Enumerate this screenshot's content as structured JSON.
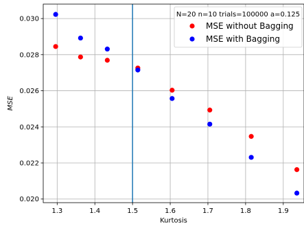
{
  "chart_data": {
    "type": "scatter",
    "xlabel": "Kurtosis",
    "ylabel": "MSE",
    "xlim": [
      1.263,
      1.955
    ],
    "ylim": [
      0.0198,
      0.0308
    ],
    "xticks": [
      1.3,
      1.4,
      1.5,
      1.6,
      1.7,
      1.8,
      1.9
    ],
    "xtick_labels": [
      "1.3",
      "1.4",
      "1.5",
      "1.6",
      "1.7",
      "1.8",
      "1.9"
    ],
    "yticks": [
      0.02,
      0.022,
      0.024,
      0.026,
      0.028,
      0.03
    ],
    "ytick_labels": [
      "0.020",
      "0.022",
      "0.024",
      "0.026",
      "0.028",
      "0.030"
    ],
    "grid": true,
    "vline": {
      "x": 1.5,
      "color": "#1f77b4"
    },
    "legend": {
      "placement": "top-right",
      "title": "N=20 n=10 trials=100000 a=0.125"
    },
    "series": [
      {
        "name": "MSE without Bagging",
        "color": "#ff0000",
        "x": [
          1.296,
          1.362,
          1.433,
          1.514,
          1.605,
          1.705,
          1.815,
          1.936
        ],
        "y": [
          0.02845,
          0.02787,
          0.02769,
          0.02726,
          0.02603,
          0.02493,
          0.02347,
          0.02163
        ]
      },
      {
        "name": "MSE with Bagging",
        "color": "#0000ff",
        "x": [
          1.296,
          1.362,
          1.433,
          1.514,
          1.605,
          1.705,
          1.815,
          1.936
        ],
        "y": [
          0.03023,
          0.02892,
          0.02831,
          0.02715,
          0.02557,
          0.02415,
          0.02231,
          0.02033
        ]
      }
    ]
  }
}
